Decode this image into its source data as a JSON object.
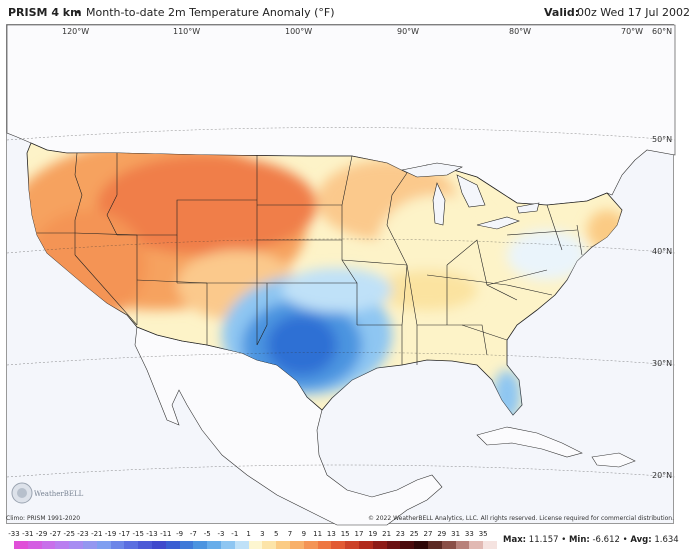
{
  "header": {
    "product": "PRISM 4 km",
    "bullet": "•",
    "title": "Month-to-date 2m Temperature Anomaly (°F)",
    "valid_label": "Valid:",
    "valid_value": "00z Wed 17 Jul 2002"
  },
  "map": {
    "lon_labels": [
      "120°W",
      "110°W",
      "100°W",
      "90°W",
      "80°W",
      "70°W",
      "60°N"
    ],
    "lat_labels": [
      "50°N",
      "40°N",
      "30°N",
      "20°N"
    ],
    "colors": {
      "ocean": "#f4f6fb",
      "land": "#fbfbfd",
      "warm_strong": "#f07e4a",
      "warm": "#f6a25f",
      "warm_light": "#fbc98c",
      "neutral": "#fdf3c8",
      "cool_light": "#bfe3f7",
      "cool": "#6ab4ec",
      "cool_strong": "#3a86dc",
      "cool_deep": "#2458c8"
    }
  },
  "credits": {
    "left": "Climo: PRISM 1991-2020",
    "right": "© 2022 WeatherBELL Analytics, LLC. All rights reserved. License required for commercial distribution."
  },
  "logo": {
    "text": "WeatherBELL"
  },
  "colorbar": {
    "ticks": [
      "-33",
      "-31",
      "-29",
      "-27",
      "-25",
      "-23",
      "-21",
      "-19",
      "-17",
      "-15",
      "-13",
      "-11",
      "-9",
      "-7",
      "-5",
      "-3",
      "-1",
      "1",
      "3",
      "5",
      "7",
      "9",
      "11",
      "13",
      "15",
      "17",
      "19",
      "21",
      "23",
      "25",
      "27",
      "29",
      "31",
      "33",
      "35"
    ],
    "colors": [
      "#e04fd8",
      "#d45fe2",
      "#c86fea",
      "#b97ef0",
      "#a78cf2",
      "#9497f0",
      "#7f9ff0",
      "#6c86e8",
      "#5b6fe0",
      "#4c5ad6",
      "#3f49cc",
      "#3a5ed2",
      "#3f7ad8",
      "#4b94e0",
      "#67adea",
      "#8ec6f2",
      "#bfe1f8",
      "#fdf6d0",
      "#fce4a8",
      "#fbcb84",
      "#f8b06a",
      "#f49455",
      "#ee7742",
      "#e25a33",
      "#cc4127",
      "#b12a1c",
      "#8e1a16",
      "#6b1012",
      "#4a0a0c",
      "#2e0607",
      "#5c2a24",
      "#8a4f47",
      "#b8817a",
      "#e1b9b3",
      "#f5e3e0"
    ]
  },
  "stats": {
    "max_label": "Max:",
    "max_value": "11.157",
    "min_label": "Min:",
    "min_value": "-6.612",
    "avg_label": "Avg:",
    "avg_value": "1.634",
    "sep": "•"
  }
}
